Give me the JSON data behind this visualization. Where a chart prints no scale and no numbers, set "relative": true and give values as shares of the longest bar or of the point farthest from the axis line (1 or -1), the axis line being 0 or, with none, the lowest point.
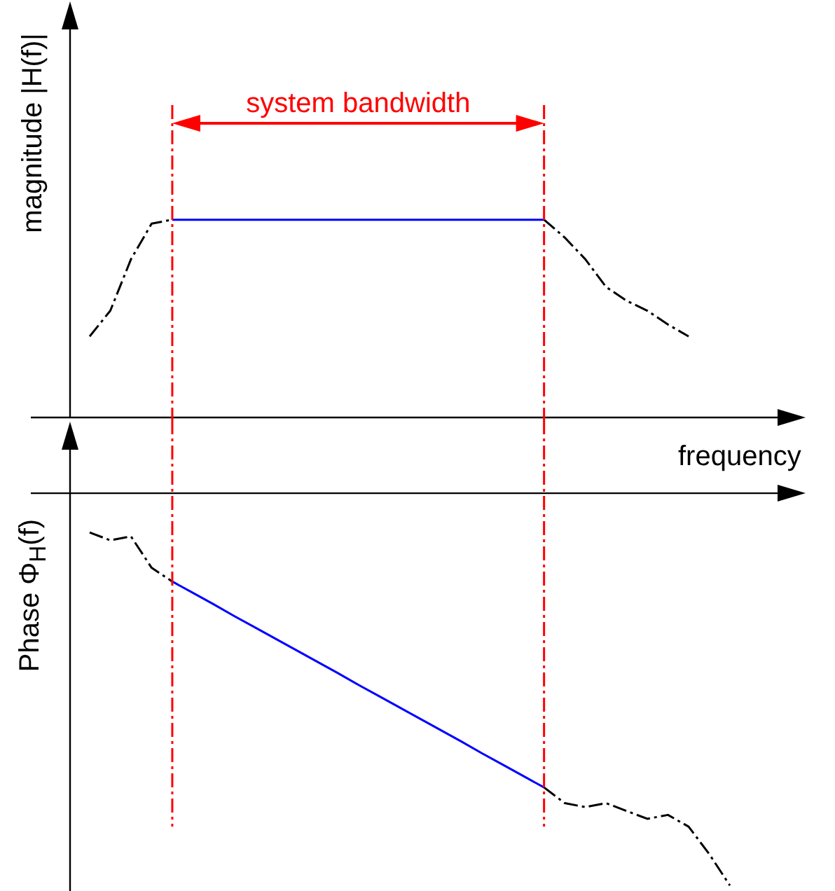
{
  "chart_data": [
    {
      "type": "line",
      "relative": true,
      "ylabel": "magnitude |H(f)|",
      "xlabel": "frequency",
      "categories": [
        null,
        null,
        null,
        null,
        null,
        null,
        null,
        null,
        null,
        null,
        null,
        null,
        null,
        null,
        null,
        null,
        null,
        null,
        null,
        null,
        null,
        null,
        null,
        null,
        null,
        null,
        null,
        null,
        null,
        null,
        null,
        null
      ],
      "series": [
        {
          "color": "#000000",
          "line_style": "dashed",
          "values": [
            0.41,
            0.54,
            0.8,
            0.98,
            1,
            null,
            null,
            null,
            null,
            null,
            null,
            null,
            null,
            null,
            null,
            null,
            null,
            null,
            null,
            null,
            null,
            null,
            1,
            0.91,
            0.8,
            0.66,
            0.59,
            0.54,
            0.47,
            0.41,
            null,
            null
          ]
        },
        {
          "color": "#0000ff",
          "line_style": "solid",
          "values": [
            null,
            null,
            null,
            null,
            1,
            1,
            1,
            1,
            1,
            1,
            1,
            1,
            1,
            1,
            1,
            1,
            1,
            1,
            1,
            1,
            1,
            1,
            1,
            null,
            null,
            null,
            null,
            null,
            null,
            null,
            null,
            null
          ]
        }
      ],
      "annotations": [
        "system bandwidth"
      ]
    },
    {
      "type": "line",
      "relative": true,
      "ylabel": "Phase Φ$_{H}$(f)",
      "categories": [
        null,
        null,
        null,
        null,
        null,
        null,
        null,
        null,
        null,
        null,
        null,
        null,
        null,
        null,
        null,
        null,
        null,
        null,
        null,
        null,
        null,
        null,
        null,
        null,
        null,
        null,
        null,
        null,
        null,
        null,
        null,
        null
      ],
      "series": [
        {
          "color": "#000000",
          "line_style": "dashed",
          "values": [
            -0.1,
            -0.12,
            -0.11,
            -0.19,
            -0.225,
            null,
            null,
            null,
            null,
            null,
            null,
            null,
            null,
            null,
            null,
            null,
            null,
            null,
            null,
            null,
            null,
            null,
            -0.75,
            -0.79,
            -0.8,
            -0.79,
            -0.81,
            -0.83,
            -0.82,
            -0.85,
            -0.92,
            -1
          ]
        },
        {
          "color": "#0000ff",
          "line_style": "solid",
          "values": [
            null,
            null,
            null,
            null,
            -0.225,
            -0.254,
            -0.283,
            -0.313,
            -0.342,
            -0.371,
            -0.4,
            -0.429,
            -0.458,
            -0.488,
            -0.517,
            -0.546,
            -0.575,
            -0.604,
            -0.633,
            -0.663,
            -0.692,
            -0.721,
            -0.75,
            null,
            null,
            null,
            null,
            null,
            null,
            null,
            null,
            null
          ]
        }
      ]
    }
  ]
}
